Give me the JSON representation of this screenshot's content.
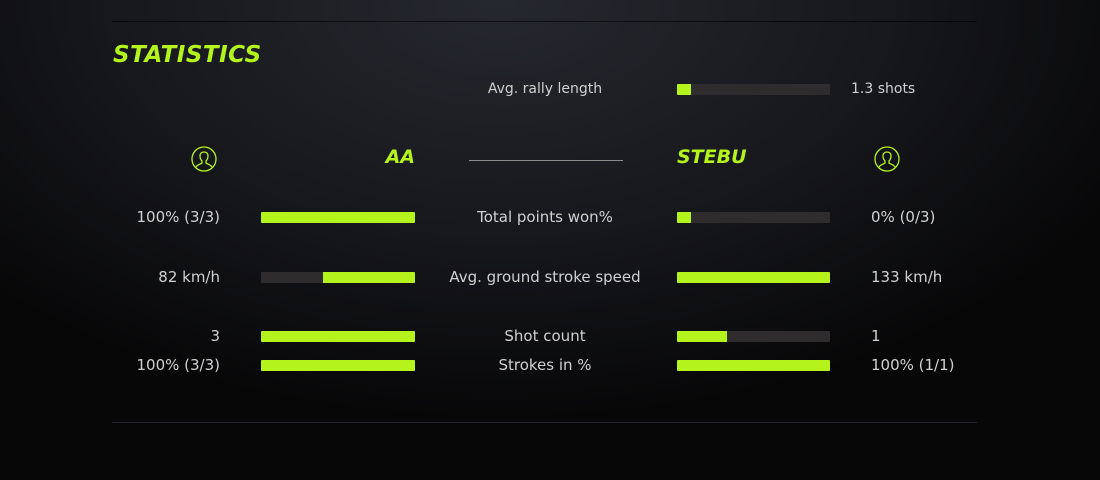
{
  "title": "STATISTICS",
  "colors": {
    "accent": "#b4f41c",
    "track": "#2e2c2d"
  },
  "rally": {
    "label": "Avg. rally length",
    "value": "1.3 shots",
    "fill": 0.09
  },
  "players": {
    "left": {
      "name": "AA",
      "icon": "user-icon"
    },
    "right": {
      "name": "STEBU",
      "icon": "user-icon"
    }
  },
  "rows": [
    {
      "label": "Total points won%",
      "left": "100% (3/3)",
      "right": "0% (0/3)",
      "left_fill": 1.0,
      "right_fill": 0.09
    },
    {
      "label": "Avg. ground stroke speed",
      "left": "82 km/h",
      "right": "133 km/h",
      "left_fill": 0.6,
      "right_fill": 1.0
    },
    {
      "label": "Shot count",
      "left": "3",
      "right": "1",
      "left_fill": 1.0,
      "right_fill": 0.33
    },
    {
      "label": "Strokes in %",
      "left": "100% (3/3)",
      "right": "100% (1/1)",
      "left_fill": 1.0,
      "right_fill": 1.0
    }
  ]
}
